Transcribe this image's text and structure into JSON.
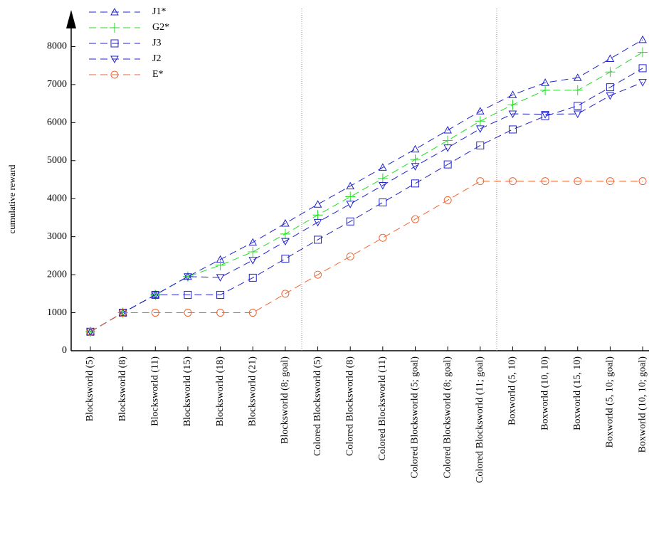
{
  "chart_data": {
    "type": "line",
    "y_label": "cumulative reward",
    "categories": [
      "Blocksworld (5)",
      "Blocksworld (8)",
      "Blocksworld (11)",
      "Blocksworld (15)",
      "Blocksworld (18)",
      "Blocksworld (21)",
      "Blocksworld (8; goal)",
      "Colored Blocksworld (5)",
      "Colored Blocksworld (8)",
      "Colored Blocksworld (11)",
      "Colored Blocksworld (5; goal)",
      "Colored Blocksworld (8; goal)",
      "Colored Blocksworld (11; goal)",
      "Boxworld (5, 10)",
      "Boxworld (10, 10)",
      "Boxworld (15, 10)",
      "Boxworld (5, 10; goal)",
      "Boxworld (10, 10; goal)"
    ],
    "series": [
      {
        "name": "J1*",
        "color": "#2222cc",
        "marker": "triangle-up",
        "values": [
          500,
          1000,
          1470,
          1950,
          2400,
          2850,
          3350,
          3850,
          4330,
          4820,
          5300,
          5800,
          6300,
          6730,
          7050,
          7180,
          7680,
          8180
        ]
      },
      {
        "name": "G2*",
        "color": "#22dd22",
        "marker": "plus",
        "values": [
          500,
          1000,
          1470,
          1950,
          2250,
          2600,
          3070,
          3570,
          4050,
          4530,
          5030,
          5530,
          6040,
          6470,
          6850,
          6850,
          7330,
          7850
        ]
      },
      {
        "name": "J3",
        "color": "#2222cc",
        "marker": "square",
        "values": [
          500,
          1000,
          1470,
          1470,
          1470,
          1920,
          2420,
          2920,
          3400,
          3900,
          4400,
          4900,
          5400,
          5820,
          6170,
          6440,
          6930,
          7430
        ]
      },
      {
        "name": "J2",
        "color": "#2222cc",
        "marker": "triangle-down",
        "values": [
          500,
          1000,
          1470,
          1950,
          1930,
          2380,
          2880,
          3380,
          3860,
          4350,
          4850,
          5340,
          5840,
          6230,
          6220,
          6230,
          6710,
          7060
        ]
      },
      {
        "name": "E*",
        "color": "#ee6633",
        "marker": "circle",
        "values": [
          500,
          1000,
          1000,
          1000,
          1000,
          1000,
          1500,
          2000,
          2480,
          2970,
          3460,
          3960,
          4460,
          4460,
          4460,
          4460,
          4460,
          4460
        ]
      }
    ],
    "ylim": [
      0,
      9000
    ],
    "yticks": [
      0,
      1000,
      2000,
      3000,
      4000,
      5000,
      6000,
      7000,
      8000
    ]
  }
}
